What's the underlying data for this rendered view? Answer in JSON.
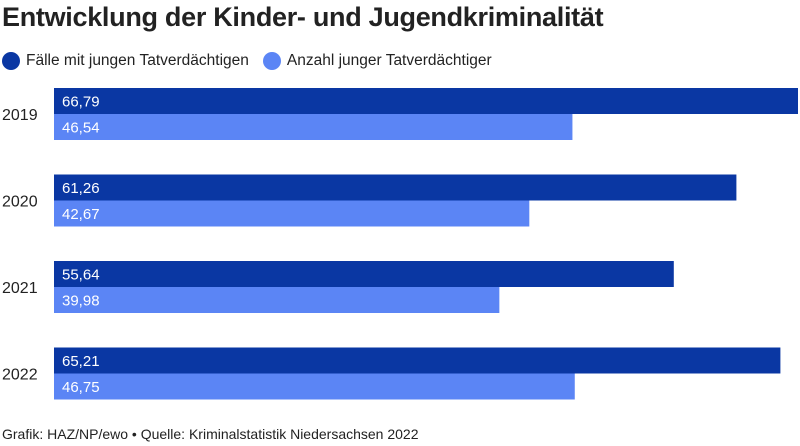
{
  "title": "Entwicklung der Kinder- und Jugendkriminalität",
  "footer": "Grafik: HAZ/NP/ewo • Quelle: Kriminalstatistik Niedersachsen 2022",
  "colors": {
    "series1": "#0a37a3",
    "series2": "#5b85f5"
  },
  "chart_data": {
    "type": "bar",
    "orientation": "horizontal",
    "categories": [
      "2019",
      "2020",
      "2021",
      "2022"
    ],
    "series": [
      {
        "name": "Fälle mit jungen Tatverdächtigen",
        "values": [
          66.79,
          61.26,
          55.64,
          65.21
        ],
        "labels": [
          "66,79",
          "61,26",
          "55,64",
          "65,21"
        ]
      },
      {
        "name": "Anzahl junger Tatverdächtiger",
        "values": [
          46.54,
          42.67,
          39.98,
          46.75
        ],
        "labels": [
          "46,54",
          "42,67",
          "39,98",
          "46,75"
        ]
      }
    ],
    "xlim": [
      0,
      66.79
    ],
    "grid": false,
    "legend": "top-left"
  }
}
